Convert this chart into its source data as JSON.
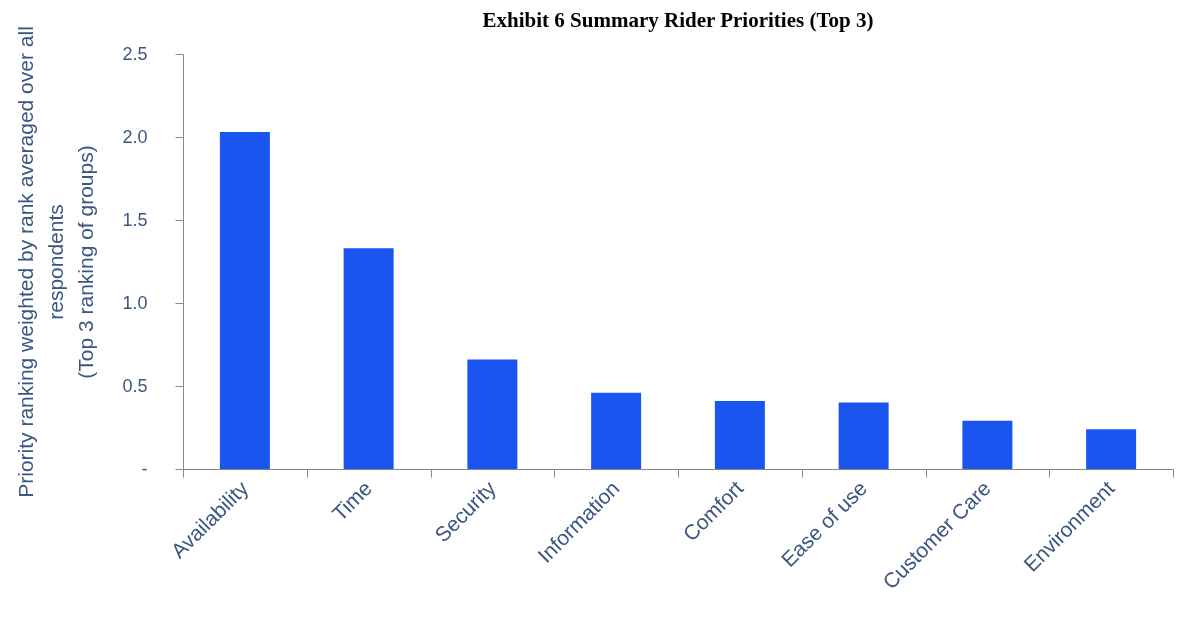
{
  "chart_data": {
    "type": "bar",
    "title": "Exhibit 6 Summary Rider Priorities (Top 3)",
    "ylabel": "Priority ranking weighted by rank averaged over all\nrespondents\n(Top 3 ranking of groups)",
    "categories": [
      "Availability",
      "Time",
      "Security",
      "Information",
      "Comfort",
      "Ease of use",
      "Customer Care",
      "Environment"
    ],
    "values": [
      2.03,
      1.33,
      0.66,
      0.46,
      0.41,
      0.4,
      0.29,
      0.24
    ],
    "color": "#1a55f0",
    "ylim": [
      0,
      2.5
    ],
    "yticks": [
      {
        "value": 0,
        "label": "-"
      },
      {
        "value": 0.5,
        "label": "0.5"
      },
      {
        "value": 1,
        "label": "1.0"
      },
      {
        "value": 1.5,
        "label": "1.5"
      },
      {
        "value": 2,
        "label": "2.0"
      },
      {
        "value": 2.5,
        "label": "2.5"
      }
    ],
    "grid": false
  }
}
